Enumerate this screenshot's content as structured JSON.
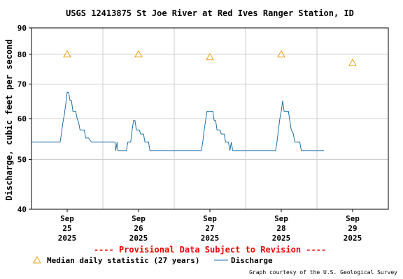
{
  "chart_data": {
    "type": "line",
    "title": "USGS 12413875 St Joe River at Red Ives Ranger Station, ID",
    "ylabel": "Discharge, cubic feet per second",
    "xlabel": "",
    "y_scale": "log",
    "ylim": [
      40,
      90
    ],
    "y_ticks": [
      "40",
      "50",
      "60",
      "70",
      "80",
      "90"
    ],
    "y_tick_values": [
      40,
      50,
      60,
      70,
      80,
      90
    ],
    "x_range_days": [
      0,
      5
    ],
    "x_ticks": [
      {
        "day": 0.5,
        "line1": "Sep",
        "line2": "25",
        "line3": "2025"
      },
      {
        "day": 1.5,
        "line1": "Sep",
        "line2": "26",
        "line3": "2025"
      },
      {
        "day": 2.5,
        "line1": "Sep",
        "line2": "27",
        "line3": "2025"
      },
      {
        "day": 3.5,
        "line1": "Sep",
        "line2": "28",
        "line3": "2025"
      },
      {
        "day": 4.5,
        "line1": "Sep",
        "line2": "29",
        "line3": "2025"
      }
    ],
    "grid": true,
    "series": [
      {
        "name": "Median daily statistic (27 years)",
        "kind": "marker",
        "color": "#e8a317",
        "points": [
          [
            0.5,
            80
          ],
          [
            1.5,
            80
          ],
          [
            2.5,
            79
          ],
          [
            3.5,
            80
          ],
          [
            4.5,
            77
          ]
        ]
      },
      {
        "name": "Discharge",
        "kind": "line",
        "color": "#1a6fa8",
        "points": [
          [
            0.0,
            54
          ],
          [
            0.4,
            54
          ],
          [
            0.42,
            56
          ],
          [
            0.44,
            59
          ],
          [
            0.46,
            61
          ],
          [
            0.48,
            64
          ],
          [
            0.5,
            67.5
          ],
          [
            0.52,
            67.5
          ],
          [
            0.54,
            65
          ],
          [
            0.56,
            65
          ],
          [
            0.58,
            62
          ],
          [
            0.62,
            62
          ],
          [
            0.64,
            60
          ],
          [
            0.66,
            59
          ],
          [
            0.68,
            57
          ],
          [
            0.74,
            57
          ],
          [
            0.76,
            55
          ],
          [
            0.8,
            55
          ],
          [
            0.84,
            54
          ],
          [
            1.17,
            54
          ],
          [
            1.18,
            52
          ],
          [
            1.2,
            54
          ],
          [
            1.21,
            52
          ],
          [
            1.33,
            52
          ],
          [
            1.35,
            54
          ],
          [
            1.39,
            54
          ],
          [
            1.41,
            57
          ],
          [
            1.43,
            59.5
          ],
          [
            1.45,
            59.5
          ],
          [
            1.47,
            57
          ],
          [
            1.51,
            57
          ],
          [
            1.53,
            56
          ],
          [
            1.57,
            56
          ],
          [
            1.59,
            54
          ],
          [
            1.64,
            54
          ],
          [
            1.66,
            52
          ],
          [
            2.38,
            52
          ],
          [
            2.4,
            54
          ],
          [
            2.42,
            57
          ],
          [
            2.44,
            59.5
          ],
          [
            2.46,
            62
          ],
          [
            2.54,
            62
          ],
          [
            2.56,
            59.5
          ],
          [
            2.58,
            59.5
          ],
          [
            2.6,
            57
          ],
          [
            2.64,
            57
          ],
          [
            2.66,
            56
          ],
          [
            2.7,
            56
          ],
          [
            2.72,
            54
          ],
          [
            2.76,
            54
          ],
          [
            2.78,
            52
          ],
          [
            2.8,
            54
          ],
          [
            2.82,
            52
          ],
          [
            3.42,
            52
          ],
          [
            3.44,
            54
          ],
          [
            3.46,
            57
          ],
          [
            3.48,
            60
          ],
          [
            3.5,
            62
          ],
          [
            3.52,
            65
          ],
          [
            3.54,
            62
          ],
          [
            3.6,
            62
          ],
          [
            3.62,
            59.5
          ],
          [
            3.64,
            57
          ],
          [
            3.67,
            56
          ],
          [
            3.69,
            54
          ],
          [
            3.76,
            54
          ],
          [
            3.78,
            52
          ],
          [
            4.1,
            52
          ]
        ]
      }
    ],
    "annotation": "---- Provisional Data Subject to Revision ----",
    "credit": "Graph courtesy of the U.S. Geological Survey",
    "legend_placement": "bottom-left"
  },
  "colors": {
    "background": "#ffffff",
    "grid": "#cccccc",
    "axis": "#000000",
    "warning": "#ee0000"
  }
}
